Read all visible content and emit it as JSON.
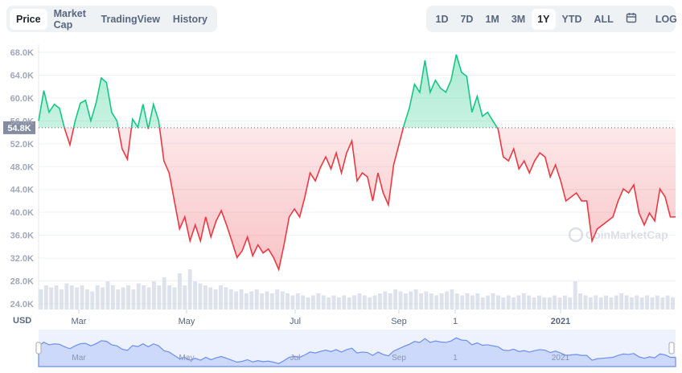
{
  "tabs": [
    "Price",
    "Market Cap",
    "TradingView",
    "History"
  ],
  "active_tab": "Price",
  "ranges": [
    "1D",
    "7D",
    "1M",
    "3M",
    "1Y",
    "YTD",
    "ALL"
  ],
  "active_range": "1Y",
  "calendar_icon": "calendar-icon",
  "log_label": "LOG",
  "currency": "USD",
  "watermark": "CoinMarketCap",
  "colors": {
    "up": "#16c784",
    "down": "#ea3943",
    "navigator": "#6b8ef0"
  },
  "chart_data": {
    "type": "area",
    "ylim": [
      24000,
      68000
    ],
    "yticks": [
      "68.0K",
      "64.0K",
      "60.0K",
      "56.0K",
      "52.0K",
      "48.0K",
      "44.0K",
      "40.0K",
      "36.0K",
      "32.0K",
      "28.0K",
      "24.0K"
    ],
    "xticks": [
      "Mar",
      "May",
      "Jul",
      "Sep",
      "1",
      "2021"
    ],
    "baseline": {
      "value": 54.8,
      "label": "54.8K"
    },
    "grid": true,
    "price_k": [
      56.0,
      61.3,
      57.5,
      58.9,
      58.2,
      54.6,
      51.8,
      56.0,
      59.1,
      59.6,
      56.0,
      59.1,
      63.5,
      62.7,
      57.5,
      56.0,
      51.1,
      49.3,
      56.3,
      54.9,
      58.9,
      54.6,
      58.9,
      56.0,
      49.0,
      46.9,
      42.0,
      37.1,
      39.2,
      35.0,
      37.8,
      35.0,
      39.2,
      35.7,
      38.5,
      40.3,
      37.8,
      35.0,
      32.1,
      33.3,
      35.7,
      32.4,
      34.3,
      32.9,
      33.6,
      32.1,
      30.0,
      34.3,
      39.2,
      40.6,
      39.2,
      42.7,
      46.9,
      45.5,
      47.9,
      49.7,
      47.6,
      50.4,
      46.9,
      50.4,
      52.5,
      45.5,
      46.9,
      46.2,
      42.0,
      46.9,
      43.4,
      41.3,
      48.3,
      51.8,
      55.3,
      58.2,
      62.4,
      61.0,
      66.6,
      61.0,
      63.1,
      61.7,
      61.0,
      63.1,
      67.6,
      64.5,
      63.8,
      57.5,
      60.3,
      56.8,
      57.5,
      56.0,
      54.6,
      49.7,
      49.0,
      51.1,
      47.6,
      49.0,
      46.9,
      49.0,
      50.4,
      49.7,
      46.2,
      48.3,
      45.5,
      42.0,
      42.7,
      43.4,
      42.0,
      42.0,
      35.0,
      37.1,
      37.8,
      38.5,
      39.2,
      42.0,
      44.1,
      43.4,
      44.8,
      39.9,
      37.8,
      39.9,
      38.5,
      44.1,
      42.7,
      39.2,
      39.2
    ],
    "volume_rel": [
      0.5,
      0.6,
      0.55,
      0.6,
      0.5,
      0.65,
      0.6,
      0.55,
      0.6,
      0.5,
      0.45,
      0.6,
      0.55,
      0.7,
      0.6,
      0.5,
      0.55,
      0.6,
      0.5,
      0.65,
      0.6,
      0.55,
      0.7,
      0.6,
      0.8,
      0.6,
      0.55,
      0.9,
      0.6,
      1.0,
      0.7,
      0.65,
      0.6,
      0.55,
      0.5,
      0.6,
      0.55,
      0.5,
      0.45,
      0.5,
      0.4,
      0.45,
      0.5,
      0.4,
      0.45,
      0.4,
      0.5,
      0.45,
      0.4,
      0.35,
      0.4,
      0.35,
      0.3,
      0.35,
      0.4,
      0.35,
      0.3,
      0.35,
      0.3,
      0.35,
      0.3,
      0.35,
      0.4,
      0.35,
      0.3,
      0.35,
      0.4,
      0.45,
      0.4,
      0.5,
      0.45,
      0.4,
      0.45,
      0.5,
      0.4,
      0.45,
      0.4,
      0.35,
      0.4,
      0.45,
      0.5,
      0.4,
      0.35,
      0.4,
      0.35,
      0.4,
      0.3,
      0.35,
      0.4,
      0.35,
      0.3,
      0.35,
      0.3,
      0.35,
      0.4,
      0.35,
      0.3,
      0.35,
      0.3,
      0.3,
      0.35,
      0.3,
      0.35,
      0.3,
      0.7,
      0.4,
      0.35,
      0.3,
      0.35,
      0.3,
      0.35,
      0.3,
      0.35,
      0.4,
      0.35,
      0.3,
      0.35,
      0.3,
      0.35,
      0.3,
      0.35,
      0.3,
      0.35,
      0.3
    ]
  }
}
